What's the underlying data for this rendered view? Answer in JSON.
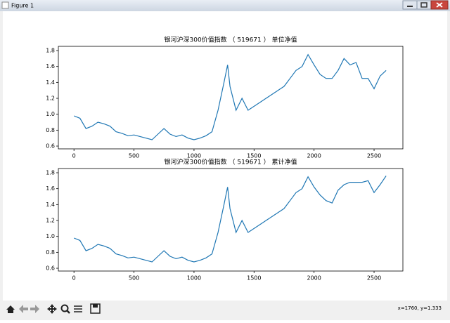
{
  "window": {
    "title": "Figure 1",
    "status": "x=1760, y=1.333"
  },
  "chart_data": [
    {
      "type": "line",
      "title": "银河沪深300价值指数 （ 519671 ） 单位净值",
      "color": "#1f77b4",
      "x": [
        0,
        50,
        100,
        150,
        200,
        250,
        300,
        350,
        400,
        450,
        500,
        550,
        600,
        650,
        700,
        750,
        800,
        850,
        900,
        950,
        1000,
        1050,
        1100,
        1150,
        1200,
        1250,
        1280,
        1300,
        1350,
        1400,
        1450,
        1500,
        1550,
        1600,
        1650,
        1700,
        1750,
        1800,
        1850,
        1900,
        1950,
        2000,
        2050,
        2100,
        2150,
        2200,
        2250,
        2300,
        2350,
        2400,
        2450,
        2500,
        2550,
        2600
      ],
      "values": [
        0.98,
        0.95,
        0.82,
        0.85,
        0.9,
        0.88,
        0.85,
        0.78,
        0.76,
        0.73,
        0.74,
        0.72,
        0.7,
        0.68,
        0.75,
        0.82,
        0.75,
        0.72,
        0.74,
        0.7,
        0.68,
        0.7,
        0.73,
        0.78,
        1.05,
        1.4,
        1.62,
        1.35,
        1.05,
        1.2,
        1.05,
        1.1,
        1.15,
        1.2,
        1.25,
        1.3,
        1.35,
        1.45,
        1.55,
        1.6,
        1.75,
        1.62,
        1.5,
        1.45,
        1.45,
        1.55,
        1.7,
        1.62,
        1.65,
        1.45,
        1.45,
        1.32,
        1.48,
        1.55
      ],
      "xlim": [
        -130,
        2740
      ],
      "ylim": [
        0.565,
        1.853
      ],
      "xticks": [
        0,
        500,
        1000,
        1500,
        2000,
        2500
      ],
      "yticks": [
        0.6,
        0.8,
        {
          "value": 1,
          "label": "1.0"
        },
        1.2,
        1.4,
        1.6,
        1.8
      ]
    },
    {
      "type": "line",
      "title": "银河沪深300价值指数 （ 519671 ） 累计净值",
      "color": "#1f77b4",
      "x": [
        0,
        50,
        100,
        150,
        200,
        250,
        300,
        350,
        400,
        450,
        500,
        550,
        600,
        650,
        700,
        750,
        800,
        850,
        900,
        950,
        1000,
        1050,
        1100,
        1150,
        1200,
        1250,
        1280,
        1300,
        1350,
        1400,
        1450,
        1500,
        1550,
        1600,
        1650,
        1700,
        1750,
        1800,
        1850,
        1900,
        1950,
        2000,
        2050,
        2100,
        2150,
        2200,
        2250,
        2300,
        2350,
        2400,
        2450,
        2500,
        2550,
        2600
      ],
      "values": [
        0.98,
        0.95,
        0.82,
        0.85,
        0.9,
        0.88,
        0.85,
        0.78,
        0.76,
        0.73,
        0.74,
        0.72,
        0.7,
        0.68,
        0.75,
        0.82,
        0.75,
        0.72,
        0.74,
        0.7,
        0.68,
        0.7,
        0.73,
        0.78,
        1.05,
        1.4,
        1.62,
        1.35,
        1.05,
        1.2,
        1.05,
        1.1,
        1.15,
        1.2,
        1.25,
        1.3,
        1.35,
        1.45,
        1.55,
        1.6,
        1.75,
        1.62,
        1.52,
        1.45,
        1.42,
        1.58,
        1.65,
        1.68,
        1.68,
        1.68,
        1.7,
        1.55,
        1.65,
        1.76
      ],
      "xlim": [
        -130,
        2740
      ],
      "ylim": [
        0.565,
        1.853
      ],
      "xticks": [
        0,
        500,
        1000,
        1500,
        2000,
        2500
      ],
      "yticks": [
        0.6,
        0.8,
        {
          "value": 1,
          "label": "1.0"
        },
        1.2,
        1.4,
        1.6,
        1.8
      ]
    }
  ]
}
